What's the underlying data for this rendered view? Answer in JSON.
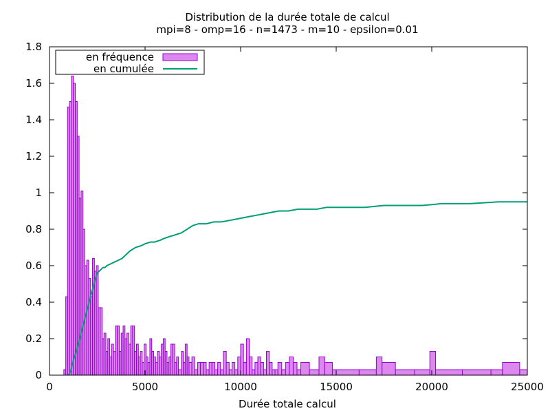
{
  "chart_data": {
    "type": "bar",
    "title": "Distribution de la durée totale de calcul",
    "subtitle": "mpi=8 - omp=16 - n=1473 - m=10 - epsilon=0.01",
    "xlabel": "Durée totale calcul",
    "ylabel": "",
    "xlim": [
      0,
      25000
    ],
    "ylim": [
      0,
      1.8
    ],
    "xticks": [
      0,
      5000,
      10000,
      15000,
      20000,
      25000
    ],
    "yticks": [
      0,
      0.2,
      0.4,
      0.6,
      0.8,
      1,
      1.2,
      1.4,
      1.6,
      1.8
    ],
    "grid": false,
    "legend_position": "top-left",
    "colors": {
      "frequency_fill": "#dd88ee",
      "frequency_stroke": "#9400d3",
      "cumulative_line": "#009e73"
    },
    "series": [
      {
        "name": "en fréquence",
        "type": "bar",
        "bars": [
          [
            750,
            850,
            0.03
          ],
          [
            850,
            950,
            0.43
          ],
          [
            950,
            1050,
            1.47
          ],
          [
            1050,
            1150,
            1.5
          ],
          [
            1150,
            1250,
            1.64
          ],
          [
            1250,
            1350,
            1.6
          ],
          [
            1350,
            1450,
            1.5
          ],
          [
            1450,
            1550,
            1.31
          ],
          [
            1550,
            1650,
            0.97
          ],
          [
            1650,
            1750,
            1.01
          ],
          [
            1750,
            1850,
            0.8
          ],
          [
            1850,
            1950,
            0.6
          ],
          [
            1950,
            2050,
            0.63
          ],
          [
            2050,
            2150,
            0.53
          ],
          [
            2150,
            2250,
            0.43
          ],
          [
            2250,
            2350,
            0.64
          ],
          [
            2350,
            2450,
            0.57
          ],
          [
            2450,
            2550,
            0.6
          ],
          [
            2550,
            2650,
            0.37
          ],
          [
            2650,
            2750,
            0.37
          ],
          [
            2750,
            2850,
            0.2
          ],
          [
            2850,
            2950,
            0.23
          ],
          [
            2950,
            3050,
            0.13
          ],
          [
            3050,
            3150,
            0.2
          ],
          [
            3150,
            3250,
            0.1
          ],
          [
            3250,
            3350,
            0.17
          ],
          [
            3350,
            3450,
            0.13
          ],
          [
            3450,
            3550,
            0.27
          ],
          [
            3550,
            3650,
            0.27
          ],
          [
            3650,
            3750,
            0.13
          ],
          [
            3750,
            3850,
            0.23
          ],
          [
            3850,
            3950,
            0.27
          ],
          [
            3950,
            4050,
            0.2
          ],
          [
            4050,
            4150,
            0.23
          ],
          [
            4150,
            4250,
            0.17
          ],
          [
            4250,
            4350,
            0.27
          ],
          [
            4350,
            4450,
            0.27
          ],
          [
            4450,
            4550,
            0.13
          ],
          [
            4550,
            4650,
            0.17
          ],
          [
            4650,
            4750,
            0.1
          ],
          [
            4750,
            4850,
            0.13
          ],
          [
            4850,
            4950,
            0.07
          ],
          [
            4950,
            5050,
            0.17
          ],
          [
            5050,
            5150,
            0.1
          ],
          [
            5150,
            5250,
            0.07
          ],
          [
            5250,
            5350,
            0.2
          ],
          [
            5350,
            5450,
            0.13
          ],
          [
            5450,
            5550,
            0.1
          ],
          [
            5550,
            5650,
            0.07
          ],
          [
            5650,
            5750,
            0.13
          ],
          [
            5750,
            5850,
            0.1
          ],
          [
            5850,
            5950,
            0.17
          ],
          [
            5950,
            6050,
            0.2
          ],
          [
            6050,
            6150,
            0.13
          ],
          [
            6150,
            6250,
            0.07
          ],
          [
            6250,
            6350,
            0.1
          ],
          [
            6350,
            6450,
            0.17
          ],
          [
            6450,
            6550,
            0.17
          ],
          [
            6550,
            6650,
            0.07
          ],
          [
            6650,
            6750,
            0.1
          ],
          [
            6750,
            6900,
            0.03
          ],
          [
            6900,
            7000,
            0.13
          ],
          [
            7000,
            7100,
            0.07
          ],
          [
            7100,
            7200,
            0.17
          ],
          [
            7200,
            7300,
            0.1
          ],
          [
            7300,
            7450,
            0.07
          ],
          [
            7450,
            7600,
            0.1
          ],
          [
            7600,
            7750,
            0.03
          ],
          [
            7750,
            7900,
            0.07
          ],
          [
            7900,
            8050,
            0.07
          ],
          [
            8050,
            8200,
            0.07
          ],
          [
            8200,
            8350,
            0.03
          ],
          [
            8350,
            8500,
            0.07
          ],
          [
            8500,
            8650,
            0.07
          ],
          [
            8650,
            8800,
            0.03
          ],
          [
            8800,
            8950,
            0.07
          ],
          [
            8950,
            9100,
            0.03
          ],
          [
            9100,
            9250,
            0.13
          ],
          [
            9250,
            9400,
            0.07
          ],
          [
            9400,
            9550,
            0.03
          ],
          [
            9550,
            9700,
            0.07
          ],
          [
            9700,
            9850,
            0.03
          ],
          [
            9850,
            10000,
            0.1
          ],
          [
            10000,
            10150,
            0.17
          ],
          [
            10150,
            10300,
            0.07
          ],
          [
            10300,
            10450,
            0.2
          ],
          [
            10450,
            10600,
            0.1
          ],
          [
            10600,
            10750,
            0.03
          ],
          [
            10750,
            10900,
            0.07
          ],
          [
            10900,
            11050,
            0.1
          ],
          [
            11050,
            11200,
            0.07
          ],
          [
            11200,
            11350,
            0.03
          ],
          [
            11350,
            11500,
            0.13
          ],
          [
            11500,
            11650,
            0.07
          ],
          [
            11650,
            11800,
            0.03
          ],
          [
            11800,
            11950,
            0.03
          ],
          [
            11950,
            12150,
            0.07
          ],
          [
            12150,
            12350,
            0.03
          ],
          [
            12350,
            12550,
            0.07
          ],
          [
            12550,
            12750,
            0.1
          ],
          [
            12750,
            12950,
            0.07
          ],
          [
            12950,
            13150,
            0.03
          ],
          [
            13150,
            13600,
            0.07
          ],
          [
            13600,
            14100,
            0.03
          ],
          [
            14100,
            14400,
            0.1
          ],
          [
            14400,
            14800,
            0.07
          ],
          [
            14800,
            16200,
            0.03
          ],
          [
            16200,
            17100,
            0.03
          ],
          [
            17100,
            17400,
            0.1
          ],
          [
            17400,
            18100,
            0.07
          ],
          [
            18100,
            19100,
            0.03
          ],
          [
            19100,
            19900,
            0.03
          ],
          [
            19900,
            20200,
            0.13
          ],
          [
            20200,
            21600,
            0.03
          ],
          [
            21600,
            23100,
            0.03
          ],
          [
            23100,
            23700,
            0.03
          ],
          [
            23700,
            24600,
            0.07
          ],
          [
            24600,
            25000,
            0.03
          ]
        ]
      },
      {
        "name": "en cumulée",
        "type": "line",
        "points": [
          [
            1000,
            0
          ],
          [
            1100,
            0.02
          ],
          [
            1200,
            0.06
          ],
          [
            1300,
            0.1
          ],
          [
            1400,
            0.13
          ],
          [
            1500,
            0.17
          ],
          [
            1600,
            0.21
          ],
          [
            1700,
            0.25
          ],
          [
            1800,
            0.29
          ],
          [
            1900,
            0.33
          ],
          [
            2000,
            0.37
          ],
          [
            2100,
            0.41
          ],
          [
            2200,
            0.45
          ],
          [
            2300,
            0.49
          ],
          [
            2400,
            0.53
          ],
          [
            2500,
            0.56
          ],
          [
            2600,
            0.57
          ],
          [
            2700,
            0.58
          ],
          [
            2800,
            0.59
          ],
          [
            2900,
            0.59
          ],
          [
            3000,
            0.6
          ],
          [
            3200,
            0.61
          ],
          [
            3400,
            0.62
          ],
          [
            3600,
            0.63
          ],
          [
            3800,
            0.64
          ],
          [
            4000,
            0.66
          ],
          [
            4200,
            0.68
          ],
          [
            4500,
            0.7
          ],
          [
            4800,
            0.71
          ],
          [
            5000,
            0.72
          ],
          [
            5300,
            0.73
          ],
          [
            5500,
            0.73
          ],
          [
            5800,
            0.74
          ],
          [
            6000,
            0.75
          ],
          [
            6300,
            0.76
          ],
          [
            6600,
            0.77
          ],
          [
            6900,
            0.78
          ],
          [
            7200,
            0.8
          ],
          [
            7500,
            0.82
          ],
          [
            7800,
            0.83
          ],
          [
            8200,
            0.83
          ],
          [
            8600,
            0.84
          ],
          [
            9000,
            0.84
          ],
          [
            9500,
            0.85
          ],
          [
            10000,
            0.86
          ],
          [
            10500,
            0.87
          ],
          [
            11000,
            0.88
          ],
          [
            11500,
            0.89
          ],
          [
            12000,
            0.9
          ],
          [
            12500,
            0.9
          ],
          [
            13000,
            0.91
          ],
          [
            13500,
            0.91
          ],
          [
            14000,
            0.91
          ],
          [
            14500,
            0.92
          ],
          [
            15500,
            0.92
          ],
          [
            16500,
            0.92
          ],
          [
            17500,
            0.93
          ],
          [
            18500,
            0.93
          ],
          [
            19500,
            0.93
          ],
          [
            20500,
            0.94
          ],
          [
            22000,
            0.94
          ],
          [
            23500,
            0.95
          ],
          [
            25000,
            0.95
          ]
        ]
      }
    ]
  }
}
